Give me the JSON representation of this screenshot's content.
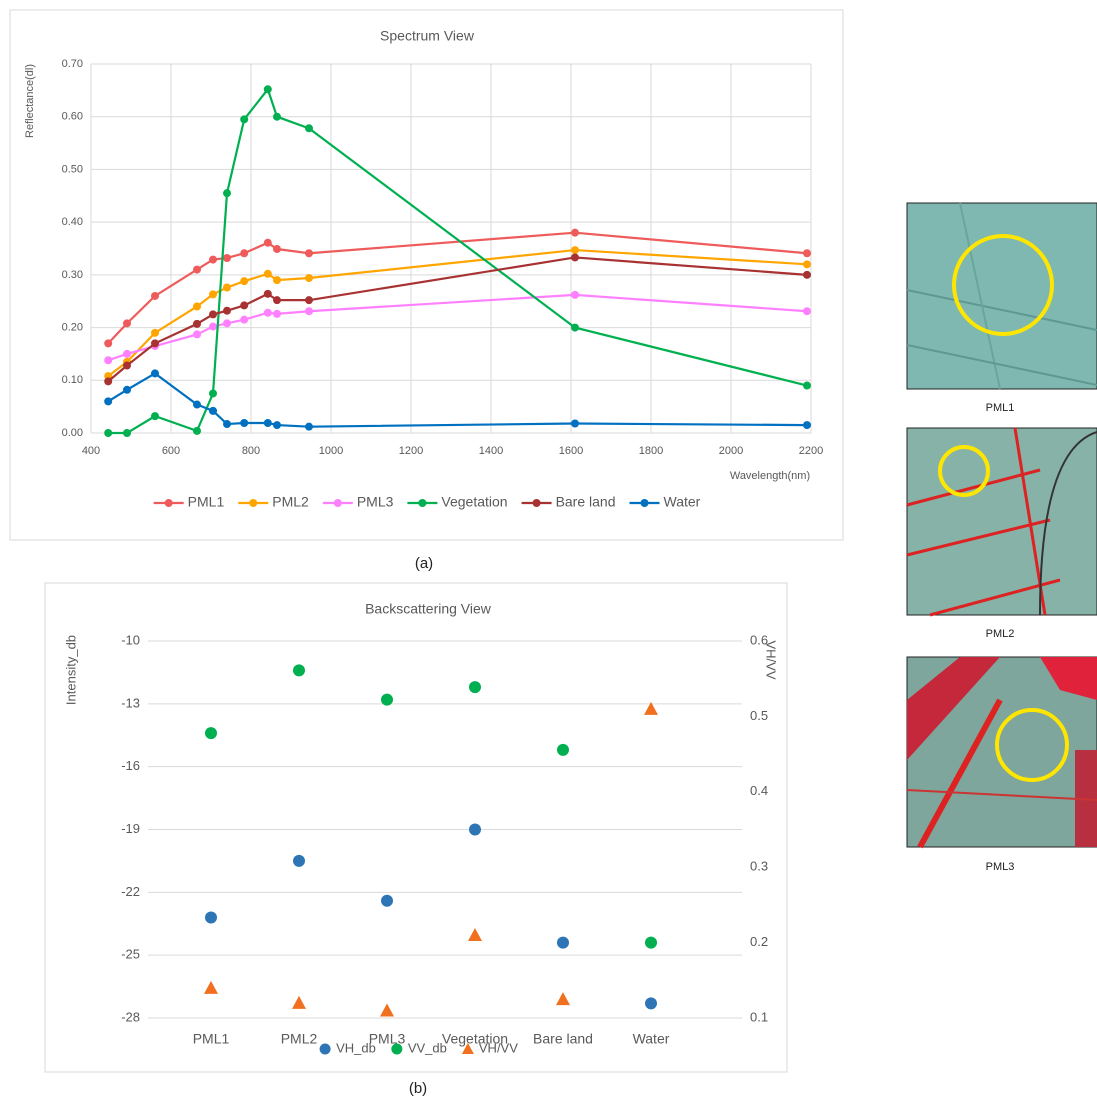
{
  "chart_data": [
    {
      "type": "line",
      "title": "Spectrum View",
      "x_label": "Wavelength(nm)",
      "y_label": "Reflectance(dl)",
      "caption": "(a)",
      "x": [
        443,
        490,
        560,
        665,
        705,
        740,
        783,
        842,
        865,
        945,
        1610,
        2190
      ],
      "series": [
        {
          "name": "PML1",
          "color": "#ef5b5b",
          "values": [
            0.17,
            0.208,
            0.26,
            0.31,
            0.329,
            0.332,
            0.341,
            0.361,
            0.349,
            0.341,
            0.38,
            0.341
          ]
        },
        {
          "name": "PML2",
          "color": "#ffa500",
          "values": [
            0.108,
            0.135,
            0.19,
            0.24,
            0.263,
            0.276,
            0.288,
            0.302,
            0.29,
            0.294,
            0.347,
            0.32
          ]
        },
        {
          "name": "PML3",
          "color": "#ff80ff",
          "values": [
            0.138,
            0.15,
            0.165,
            0.187,
            0.202,
            0.208,
            0.215,
            0.228,
            0.226,
            0.231,
            0.262,
            0.231
          ]
        },
        {
          "name": "Vegetation",
          "color": "#00b050",
          "values": [
            0.0,
            0.0,
            0.032,
            0.004,
            0.075,
            0.455,
            0.595,
            0.652,
            0.6,
            0.578,
            0.2,
            0.09
          ]
        },
        {
          "name": "Bare land",
          "color": "#a83232",
          "values": [
            0.098,
            0.128,
            0.17,
            0.207,
            0.225,
            0.232,
            0.242,
            0.264,
            0.252,
            0.252,
            0.333,
            0.3
          ]
        },
        {
          "name": "Water",
          "color": "#0070c0",
          "values": [
            0.06,
            0.082,
            0.113,
            0.054,
            0.042,
            0.017,
            0.019,
            0.019,
            0.015,
            0.012,
            0.018,
            0.015
          ]
        }
      ],
      "xlim": [
        400,
        2200
      ],
      "xticks": [
        400,
        600,
        800,
        1000,
        1200,
        1400,
        1600,
        1800,
        2000,
        2200
      ],
      "ylim": [
        0,
        0.7
      ],
      "yticks": [
        {
          "value": 0,
          "label": "0.00"
        },
        {
          "value": 0.1,
          "label": "0.10"
        },
        {
          "value": 0.2,
          "label": "0.20"
        },
        {
          "value": 0.3,
          "label": "0.30"
        },
        {
          "value": 0.4,
          "label": "0.40"
        },
        {
          "value": 0.5,
          "label": "0.50"
        },
        {
          "value": 0.6,
          "label": "0.60"
        },
        {
          "value": 0.7,
          "label": "0.70"
        }
      ],
      "grid": true,
      "legend": "bottom"
    },
    {
      "type": "scatter",
      "title": "Backscattering View",
      "y_label": "Intensity_db",
      "y2_label": "VH/VV",
      "caption": "(b)",
      "categories": [
        "PML1",
        "PML2",
        "PML3",
        "Vegetation",
        "Bare land",
        "Water"
      ],
      "series": [
        {
          "name": "VH_db",
          "color": "#2e75b6",
          "marker": "circle",
          "values": [
            -23.2,
            -20.5,
            -22.4,
            -19.0,
            -24.4,
            -27.3
          ]
        },
        {
          "name": "VV_db",
          "color": "#00b050",
          "marker": "circle",
          "values": [
            -14.4,
            -11.4,
            -12.8,
            -12.2,
            -15.2,
            -24.4
          ]
        },
        {
          "name": "VH/VV",
          "color": "#f07020",
          "marker": "triangle",
          "axis": "y2",
          "values": [
            0.14,
            0.12,
            0.11,
            0.21,
            0.125,
            0.51
          ]
        }
      ],
      "ylim": [
        -28,
        -10
      ],
      "yticks": [
        -10,
        -13,
        -16,
        -19,
        -22,
        -25,
        -28
      ],
      "y2lim": [
        0.1,
        0.6
      ],
      "y2ticks": [
        0.1,
        0.2,
        0.3,
        0.4,
        0.5,
        0.6
      ],
      "grid": true,
      "legend": "bottom"
    }
  ],
  "images": [
    {
      "label": "PML1"
    },
    {
      "label": "PML2"
    },
    {
      "label": "PML3"
    }
  ]
}
